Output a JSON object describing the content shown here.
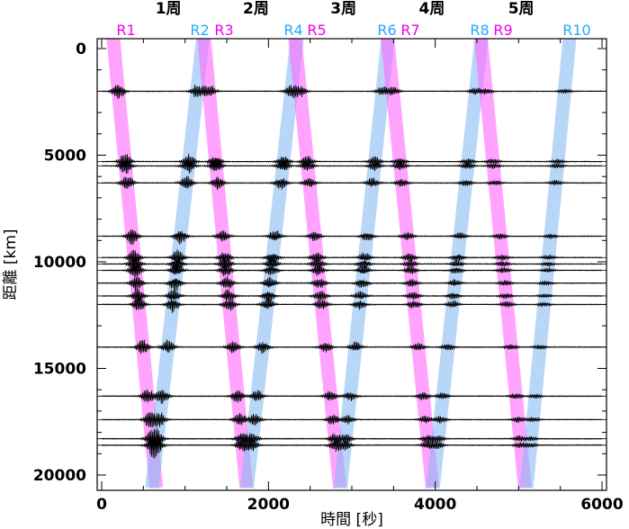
{
  "chart_data": {
    "type": "line",
    "xlabel": "時間 [秒]",
    "ylabel": "距離 [km]",
    "xlim": [
      0,
      6000
    ],
    "ylim": [
      0,
      20000
    ],
    "y_inverted": true,
    "x_ticks": [
      0,
      2000,
      4000,
      6000
    ],
    "x_tick_labels": [
      "0",
      "2000",
      "4000",
      "6000"
    ],
    "y_ticks": [
      0,
      5000,
      10000,
      15000,
      20000
    ],
    "y_tick_labels": [
      "0",
      "5000",
      "10000",
      "15000",
      "20000"
    ],
    "colors": {
      "odd_phase": "#ff66ff",
      "even_phase": "#88bbf2",
      "odd_label": "#ee00ee",
      "even_label": "#22aaff",
      "trace": "#000000"
    },
    "lap_labels": [
      "1周",
      "2周",
      "3周",
      "4周",
      "5周"
    ],
    "phase_labels": [
      {
        "text": "R1",
        "kind": "odd"
      },
      {
        "text": "R2",
        "kind": "even"
      },
      {
        "text": "R3",
        "kind": "odd"
      },
      {
        "text": "R4",
        "kind": "even"
      },
      {
        "text": "R5",
        "kind": "odd"
      },
      {
        "text": "R6",
        "kind": "even"
      },
      {
        "text": "R7",
        "kind": "odd"
      },
      {
        "text": "R8",
        "kind": "even"
      },
      {
        "text": "R9",
        "kind": "odd"
      },
      {
        "text": "R10",
        "kind": "even"
      }
    ],
    "phase_bands": [
      {
        "name": "R1",
        "kind": "odd",
        "t_at_0": 150,
        "t_at_20000": 640
      },
      {
        "name": "R2",
        "kind": "even",
        "t_at_0": 1200,
        "t_at_20000": 620
      },
      {
        "name": "R3",
        "kind": "odd",
        "t_at_0": 1240,
        "t_at_20000": 1720
      },
      {
        "name": "R4",
        "kind": "even",
        "t_at_0": 2330,
        "t_at_20000": 1760
      },
      {
        "name": "R5",
        "kind": "odd",
        "t_at_0": 2330,
        "t_at_20000": 2840
      },
      {
        "name": "R6",
        "kind": "even",
        "t_at_0": 3420,
        "t_at_20000": 2880
      },
      {
        "name": "R7",
        "kind": "odd",
        "t_at_0": 3440,
        "t_at_20000": 3950
      },
      {
        "name": "R8",
        "kind": "even",
        "t_at_0": 4540,
        "t_at_20000": 3990
      },
      {
        "name": "R9",
        "kind": "odd",
        "t_at_0": 4560,
        "t_at_20000": 5060
      },
      {
        "name": "R10",
        "kind": "even",
        "t_at_0": 5600,
        "t_at_20000": 5110
      }
    ],
    "lap_label_times": [
      800,
      1850,
      2900,
      3960,
      5030
    ],
    "stations_km": [
      2000,
      5300,
      5500,
      6300,
      8800,
      9800,
      10100,
      10400,
      11000,
      11600,
      12000,
      14000,
      16300,
      17400,
      18300,
      18600
    ]
  }
}
